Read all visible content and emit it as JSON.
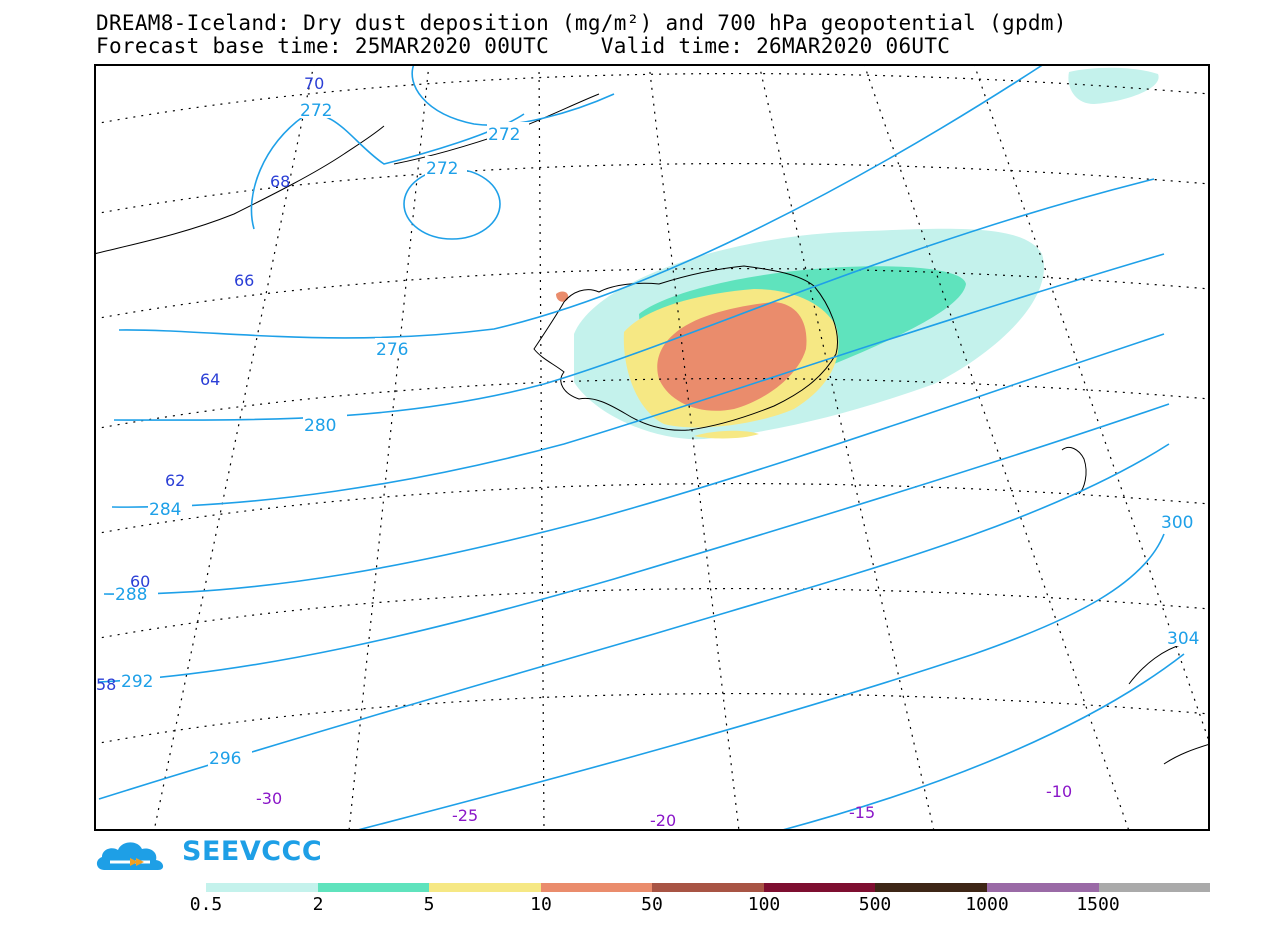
{
  "header": {
    "title_line1": "DREAM8-Iceland: Dry dust deposition (mg/m²) and 700 hPa geopotential (gpdm)",
    "title_line2": "Forecast base time: 25MAR2020 00UTC    Valid time: 26MAR2020 06UTC"
  },
  "map": {
    "contour_color": "#1ea0e8",
    "lat_label_color": "#2b3fd6",
    "lon_label_color": "#8a16c8",
    "geopotential_contours": [
      "272",
      "272",
      "272",
      "276",
      "280",
      "284",
      "288",
      "292",
      "296",
      "300",
      "304"
    ],
    "latitude_labels": [
      "70",
      "68",
      "66",
      "64",
      "62",
      "60",
      "58"
    ],
    "longitude_labels": [
      "-30",
      "-25",
      "-20",
      "-15",
      "-10"
    ]
  },
  "logo": {
    "text": "SEEVCCC",
    "icon": "cloud-icon"
  },
  "legend": {
    "colors": [
      "#c4f2ec",
      "#5fe3bd",
      "#f6e884",
      "#ea8c6c",
      "#a85444",
      "#7e0e30",
      "#3e2616",
      "#9a6aa6",
      "#aaaaaa"
    ],
    "ticks": [
      "0.5",
      "2",
      "5",
      "10",
      "50",
      "100",
      "500",
      "1000",
      "1500"
    ]
  }
}
